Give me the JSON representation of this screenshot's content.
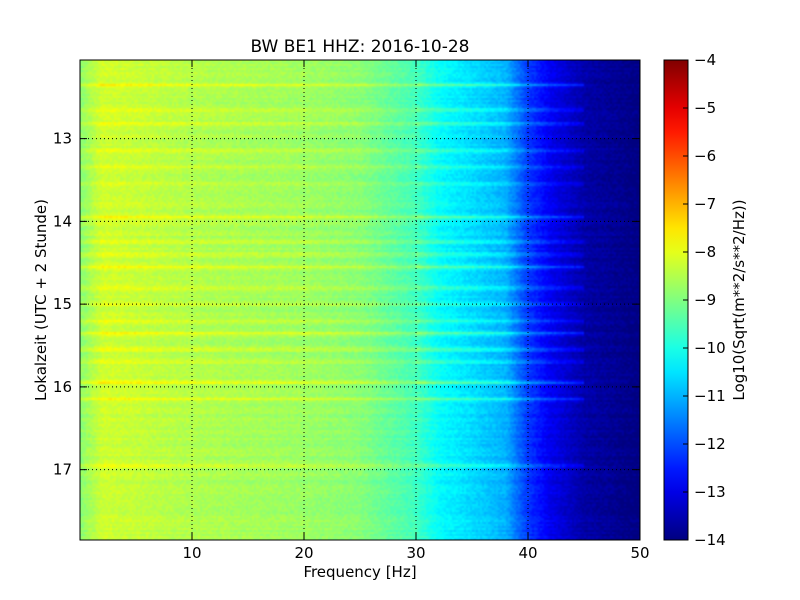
{
  "chart_data": {
    "type": "heatmap",
    "title": "BW BE1 HHZ: 2016-10-28",
    "xlabel": "Frequency [Hz]",
    "ylabel": "Lokalzeit (UTC + 2 Stunde)",
    "colorbar_label": "Log10(Sqrt(m**2/s**2/Hz))",
    "xlim": [
      0,
      50
    ],
    "ylim": [
      17.85,
      12.05
    ],
    "y_inverted": true,
    "x_ticks": [
      10,
      20,
      30,
      40,
      50
    ],
    "x_tick_labels": [
      "10",
      "20",
      "30",
      "40",
      "50"
    ],
    "y_ticks": [
      13,
      14,
      15,
      16,
      17
    ],
    "y_tick_labels": [
      "13",
      "14",
      "15",
      "16",
      "17"
    ],
    "clim": [
      -14,
      -4
    ],
    "colorbar_ticks": [
      -4,
      -5,
      -6,
      -7,
      -8,
      -9,
      -10,
      -11,
      -12,
      -13,
      -14
    ],
    "colorbar_tick_labels": [
      "−4",
      "−5",
      "−6",
      "−7",
      "−8",
      "−9",
      "−10",
      "−11",
      "−12",
      "−13",
      "−14"
    ],
    "colormap": "jet",
    "grid": true,
    "grid_style": "dotted",
    "spectrum_profile": {
      "frequency": [
        0,
        2,
        5,
        10,
        15,
        20,
        25,
        30,
        32,
        35,
        38,
        40,
        42,
        45,
        50
      ],
      "log10_amplitude": [
        -8.9,
        -8.2,
        -8.3,
        -8.5,
        -8.6,
        -8.7,
        -8.9,
        -9.6,
        -10.2,
        -10.6,
        -11.0,
        -12.2,
        -12.9,
        -13.6,
        -14.0
      ]
    },
    "horizontal_bands": [
      {
        "time": 12.35,
        "strength": 0.6
      },
      {
        "time": 12.65,
        "strength": 0.5
      },
      {
        "time": 12.82,
        "strength": 0.5
      },
      {
        "time": 13.15,
        "strength": 0.4
      },
      {
        "time": 13.35,
        "strength": 0.4
      },
      {
        "time": 13.55,
        "strength": 0.4
      },
      {
        "time": 13.95,
        "strength": 0.6
      },
      {
        "time": 14.25,
        "strength": 0.4
      },
      {
        "time": 14.4,
        "strength": 0.4
      },
      {
        "time": 14.55,
        "strength": 0.6
      },
      {
        "time": 14.8,
        "strength": 0.5
      },
      {
        "time": 15.0,
        "strength": 0.4
      },
      {
        "time": 15.2,
        "strength": 0.4
      },
      {
        "time": 15.35,
        "strength": 0.6
      },
      {
        "time": 15.55,
        "strength": 0.5
      },
      {
        "time": 15.7,
        "strength": 0.4
      },
      {
        "time": 15.95,
        "strength": 0.7
      },
      {
        "time": 16.15,
        "strength": 0.6
      },
      {
        "time": 16.95,
        "strength": 0.5
      }
    ]
  }
}
